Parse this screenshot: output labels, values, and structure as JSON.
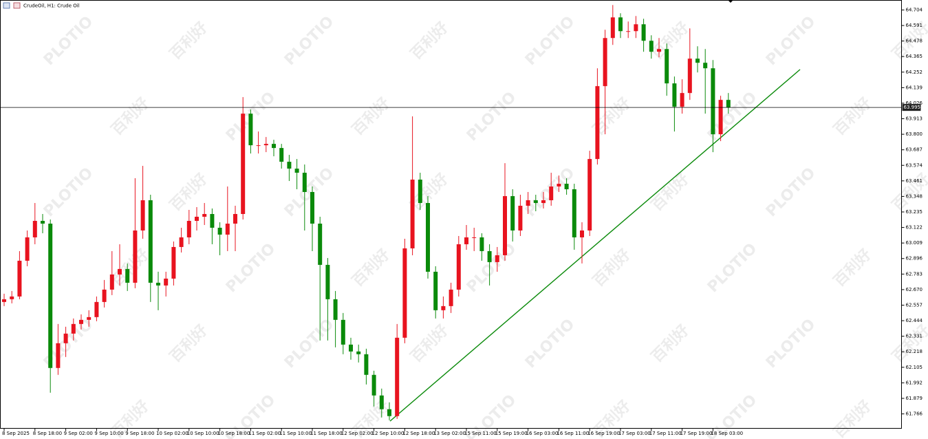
{
  "chart_data": {
    "type": "candlestick",
    "title": "CrudeOil, H1:  Crude Oil",
    "watermark": [
      "PLOTIO",
      "百利好"
    ],
    "categories": [
      "8 Sep 2025",
      null,
      null,
      null,
      "8 Sep 18:00",
      null,
      null,
      null,
      "9 Sep 02:00",
      null,
      null,
      null,
      "9 Sep 10:00",
      null,
      null,
      null,
      "9 Sep 18:00",
      null,
      null,
      null,
      "10 Sep 02:00",
      null,
      null,
      null,
      "10 Sep 10:00",
      null,
      null,
      null,
      "10 Sep 18:00",
      null,
      null,
      null,
      "11 Sep 02:00",
      null,
      null,
      null,
      "11 Sep 10:00",
      null,
      null,
      null,
      "11 Sep 18:00",
      null,
      null,
      null,
      "12 Sep 02:00",
      null,
      null,
      null,
      "12 Sep 10:00",
      null,
      null,
      null,
      "12 Sep 18:00",
      null,
      null,
      null,
      "13 Sep 02:00",
      null,
      null,
      null,
      "15 Sep 11:00",
      null,
      null,
      null,
      "15 Sep 19:00",
      null,
      null,
      null,
      "16 Sep 03:00",
      null,
      null,
      null,
      "16 Sep 11:00",
      null,
      null,
      null,
      "16 Sep 19:00",
      null,
      null,
      null,
      "17 Sep 03:00",
      null,
      null,
      null,
      "17 Sep 11:00",
      null,
      null,
      null,
      "17 Sep 19:00",
      null,
      null,
      null,
      "18 Sep 03:00",
      null,
      null
    ],
    "open": [
      62.58,
      62.6,
      62.62,
      62.88,
      63.05,
      63.17,
      63.15,
      62.1,
      62.28,
      62.35,
      62.42,
      62.45,
      62.47,
      62.58,
      62.67,
      62.78,
      62.82,
      62.72,
      63.1,
      63.32,
      62.72,
      62.7,
      62.75,
      62.98,
      63.05,
      63.17,
      63.2,
      63.22,
      63.12,
      63.07,
      63.15,
      63.22,
      63.95,
      63.72,
      63.72,
      63.73,
      63.7,
      63.6,
      63.55,
      63.52,
      63.38,
      63.15,
      62.85,
      62.6,
      62.45,
      62.27,
      62.22,
      62.2,
      62.05,
      61.9,
      61.8,
      61.75,
      62.32,
      62.97,
      63.47,
      63.3,
      62.8,
      62.52,
      62.55,
      62.67,
      63.0,
      63.05,
      63.05,
      62.95,
      62.87,
      62.92,
      63.35,
      63.1,
      63.28,
      63.32,
      63.3,
      63.32,
      63.42,
      63.44,
      63.4,
      63.05,
      63.1,
      63.62,
      64.15,
      64.5,
      64.65,
      64.55,
      64.55,
      64.6,
      64.48,
      64.4,
      64.42,
      64.17,
      64.0,
      64.1,
      64.35,
      64.32,
      64.28,
      63.8,
      64.05
    ],
    "high": [
      62.64,
      62.66,
      62.95,
      63.1,
      63.3,
      63.22,
      63.18,
      62.42,
      62.4,
      62.46,
      62.49,
      62.52,
      62.62,
      62.74,
      62.95,
      63.0,
      62.86,
      63.48,
      63.57,
      63.36,
      62.8,
      62.8,
      63.02,
      63.12,
      63.25,
      63.27,
      63.3,
      63.26,
      63.16,
      63.42,
      63.28,
      64.07,
      63.98,
      63.82,
      63.78,
      63.76,
      63.73,
      63.65,
      63.62,
      63.58,
      63.42,
      63.2,
      62.9,
      62.66,
      62.5,
      62.32,
      62.27,
      62.24,
      62.08,
      61.95,
      61.85,
      62.42,
      63.04,
      63.93,
      63.52,
      63.35,
      62.84,
      62.62,
      62.72,
      63.06,
      63.14,
      63.12,
      63.08,
      63.0,
      62.98,
      63.59,
      63.4,
      63.36,
      63.38,
      63.36,
      63.38,
      63.52,
      63.5,
      63.48,
      63.44,
      63.16,
      63.68,
      64.28,
      64.56,
      64.74,
      64.68,
      64.62,
      64.66,
      64.64,
      64.52,
      64.5,
      64.46,
      64.22,
      64.2,
      64.57,
      64.44,
      64.42,
      64.34,
      64.08,
      64.1
    ],
    "low": [
      62.55,
      62.57,
      62.6,
      62.84,
      63.0,
      63.08,
      61.92,
      62.05,
      62.18,
      62.3,
      62.38,
      62.4,
      62.44,
      62.54,
      62.63,
      62.7,
      62.66,
      62.68,
      63.04,
      62.58,
      62.52,
      62.62,
      62.7,
      62.94,
      63.0,
      63.1,
      63.14,
      63.0,
      62.92,
      62.95,
      62.95,
      63.18,
      63.66,
      63.66,
      63.67,
      63.64,
      63.55,
      63.46,
      63.4,
      63.1,
      62.95,
      62.3,
      62.3,
      62.25,
      62.2,
      62.16,
      62.14,
      61.98,
      61.82,
      61.74,
      61.72,
      61.73,
      62.28,
      62.92,
      63.25,
      62.75,
      62.46,
      62.46,
      62.5,
      62.62,
      62.96,
      62.95,
      62.88,
      62.7,
      62.8,
      62.88,
      63.02,
      63.06,
      63.22,
      63.24,
      63.26,
      63.28,
      63.38,
      63.36,
      62.96,
      62.86,
      63.06,
      63.58,
      63.8,
      64.45,
      64.5,
      64.5,
      64.5,
      64.4,
      64.35,
      64.36,
      64.08,
      63.82,
      63.95,
      64.05,
      64.25,
      63.95,
      63.67,
      63.75,
      63.95
    ],
    "close": [
      62.6,
      62.62,
      62.88,
      63.05,
      63.17,
      63.15,
      62.1,
      62.28,
      62.35,
      62.42,
      62.45,
      62.47,
      62.58,
      62.67,
      62.78,
      62.82,
      62.72,
      63.1,
      63.32,
      62.72,
      62.7,
      62.75,
      62.98,
      63.05,
      63.17,
      63.2,
      63.22,
      63.12,
      63.07,
      63.15,
      63.22,
      63.95,
      63.72,
      63.72,
      63.73,
      63.7,
      63.6,
      63.55,
      63.52,
      63.38,
      63.15,
      62.85,
      62.6,
      62.45,
      62.27,
      62.22,
      62.2,
      62.05,
      61.9,
      61.8,
      61.75,
      62.32,
      62.97,
      63.47,
      63.3,
      62.8,
      62.52,
      62.55,
      62.67,
      63.0,
      63.05,
      63.05,
      62.95,
      62.87,
      62.92,
      63.35,
      63.1,
      63.28,
      63.32,
      63.3,
      63.32,
      63.42,
      63.44,
      63.4,
      63.05,
      63.1,
      63.62,
      64.15,
      64.5,
      64.65,
      64.55,
      64.55,
      64.6,
      64.48,
      64.4,
      64.42,
      64.17,
      64.0,
      64.1,
      64.35,
      64.32,
      64.28,
      63.8,
      64.05,
      63.995
    ],
    "up_color": "#e8131f",
    "down_color": "#0a8a0a",
    "last_price": 63.995,
    "ylim": [
      61.661,
      64.774
    ],
    "yticks": [
      61.766,
      61.879,
      61.992,
      62.105,
      62.218,
      62.331,
      62.444,
      62.557,
      {
        "value": 62.67,
        "label": "62.670"
      },
      62.783,
      62.896,
      63.009,
      63.122,
      63.235,
      63.348,
      63.461,
      63.574,
      63.687,
      {
        "value": 63.8,
        "label": "63.800"
      },
      63.913,
      64.026,
      64.139,
      64.252,
      64.365,
      64.478,
      64.591,
      64.704
    ]
  }
}
